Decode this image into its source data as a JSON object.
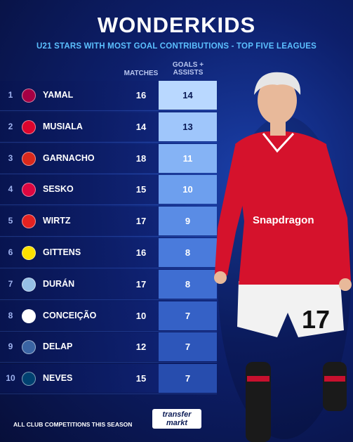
{
  "title": "WONDERKIDS",
  "subtitle": "U21 STARS WITH MOST GOAL CONTRIBUTIONS - TOP FIVE LEAGUES",
  "headers": {
    "matches": "MATCHES",
    "goals_line1": "GOALS +",
    "goals_line2": "ASSISTS"
  },
  "rows": [
    {
      "rank": "1",
      "name": "YAMAL",
      "matches": "16",
      "goals": "14",
      "club_icon": "barcelona-crest",
      "crest_color": "#a50044",
      "shade": "#b9d8ff"
    },
    {
      "rank": "2",
      "name": "MUSIALA",
      "matches": "14",
      "goals": "13",
      "club_icon": "bayern-crest",
      "crest_color": "#dc052d",
      "shade": "#9fc6fb"
    },
    {
      "rank": "3",
      "name": "GARNACHO",
      "matches": "18",
      "goals": "11",
      "club_icon": "man-united-crest",
      "crest_color": "#da291c",
      "shade": "#85b3f5"
    },
    {
      "rank": "4",
      "name": "SESKO",
      "matches": "15",
      "goals": "10",
      "club_icon": "leipzig-crest",
      "crest_color": "#dd0741",
      "shade": "#6d9fee"
    },
    {
      "rank": "5",
      "name": "WIRTZ",
      "matches": "17",
      "goals": "9",
      "club_icon": "leverkusen-crest",
      "crest_color": "#e32221",
      "shade": "#5a8ce5"
    },
    {
      "rank": "6",
      "name": "GITTENS",
      "matches": "16",
      "goals": "8",
      "club_icon": "dortmund-crest",
      "crest_color": "#fde100",
      "shade": "#4a7bdc"
    },
    {
      "rank": "7",
      "name": "DURÁN",
      "matches": "17",
      "goals": "8",
      "club_icon": "aston-villa-crest",
      "crest_color": "#95bfe5",
      "shade": "#3f6ed2"
    },
    {
      "rank": "8",
      "name": "CONCEIÇÃO",
      "matches": "10",
      "goals": "7",
      "club_icon": "juventus-crest",
      "crest_color": "#ffffff",
      "shade": "#3561c6"
    },
    {
      "rank": "9",
      "name": "DELAP",
      "matches": "12",
      "goals": "7",
      "club_icon": "ipswich-crest",
      "crest_color": "#3a64a3",
      "shade": "#2d56ba"
    },
    {
      "rank": "10",
      "name": "NEVES",
      "matches": "15",
      "goals": "7",
      "club_icon": "psg-crest",
      "crest_color": "#004170",
      "shade": "#274dae"
    }
  ],
  "footer": "ALL CLUB COMPETITIONS THIS SEASON",
  "logo": {
    "line1": "transfer",
    "line2": "markt"
  },
  "player_image": "player-photo"
}
